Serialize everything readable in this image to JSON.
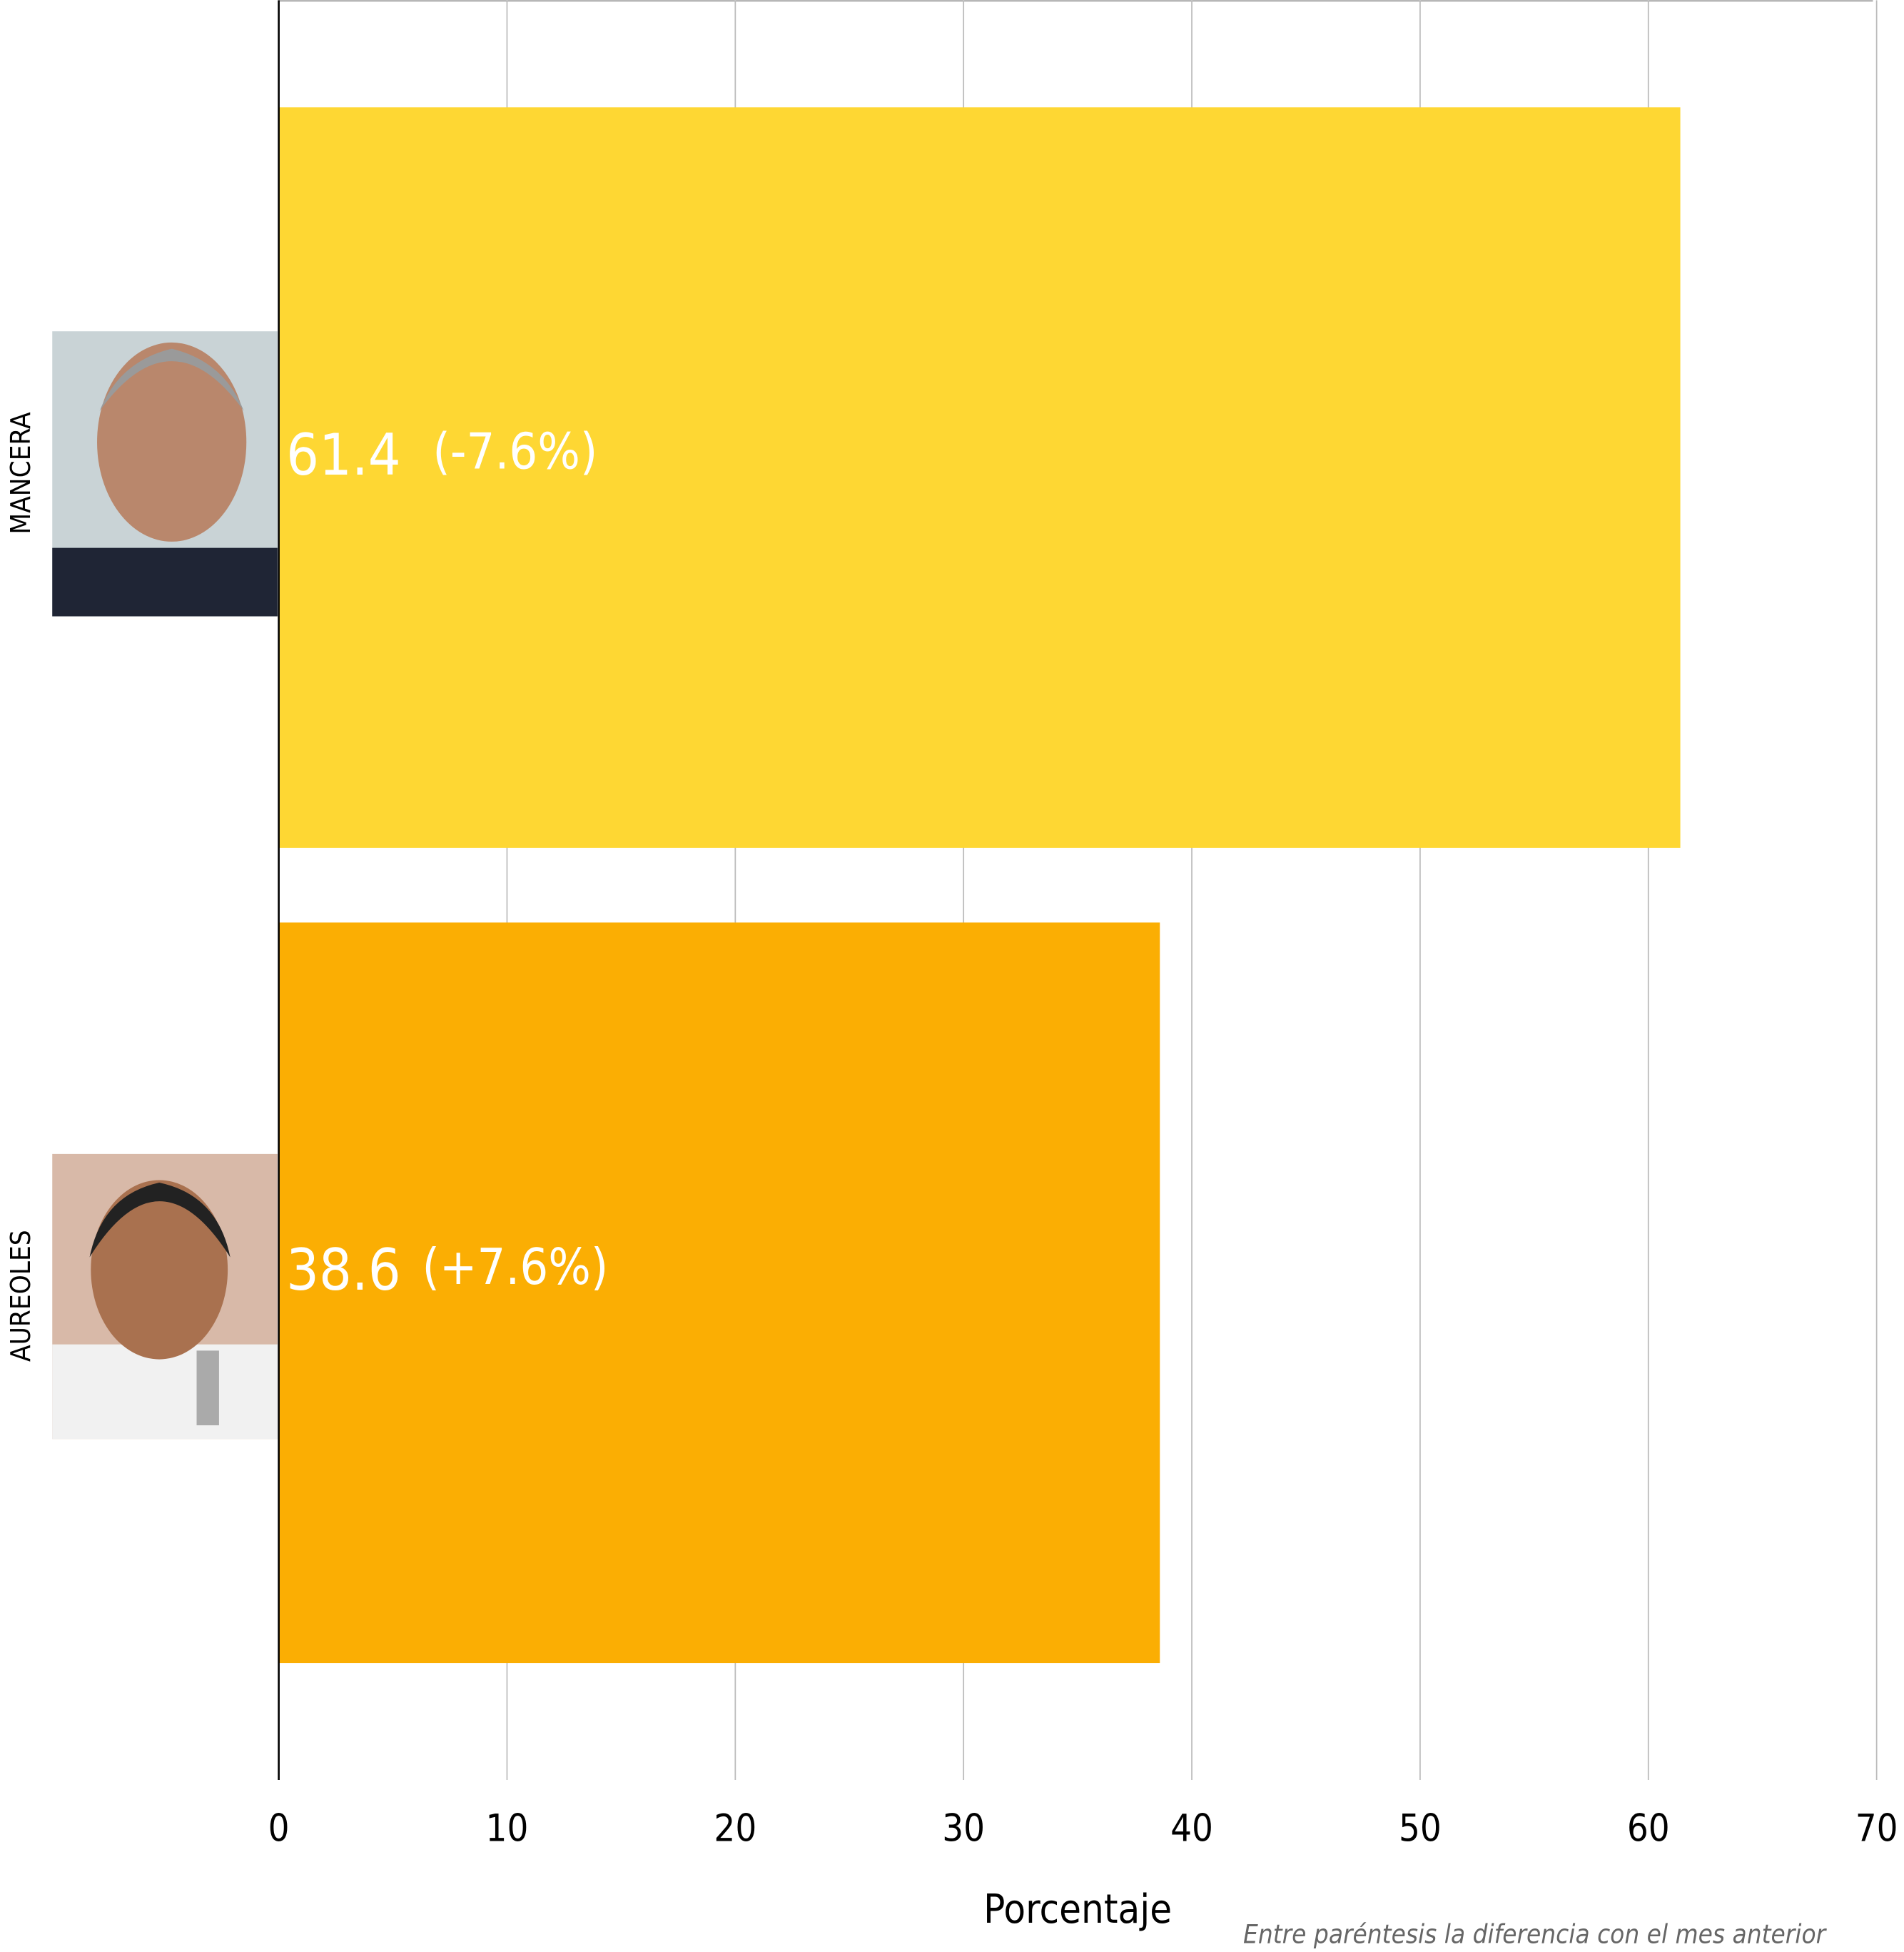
{
  "chart_data": {
    "type": "hbar",
    "categories": [
      "MANCERA",
      "AUREOLES"
    ],
    "values": [
      61.4,
      38.6
    ],
    "changes": [
      "(-7.6%)",
      "(+7.6%)"
    ],
    "colors": [
      "#fed733",
      "#fbae03"
    ],
    "xlim": [
      0,
      70
    ],
    "xticks": [
      0,
      10,
      20,
      30,
      40,
      50,
      60,
      70
    ],
    "xlabel": "Porcentaje",
    "note": "Entre paréntesis la diferencia con el mes anterior",
    "grid": true
  }
}
